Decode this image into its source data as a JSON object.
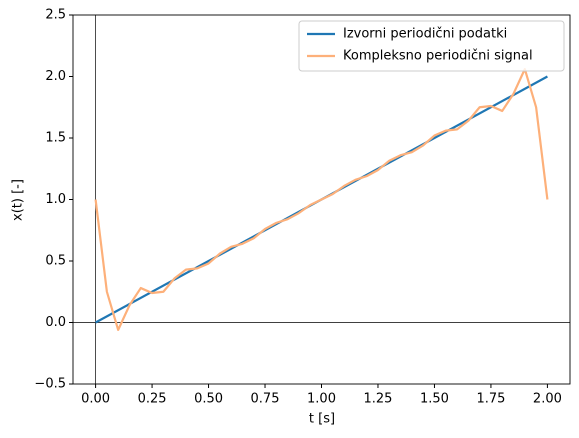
{
  "chart_data": {
    "type": "line",
    "xlabel": "t [s]",
    "ylabel": "x(t) [-]",
    "xlim": [
      -0.1,
      2.1
    ],
    "ylim": [
      -0.5,
      2.5
    ],
    "xticks": [
      {
        "value": 0,
        "label": "0.00"
      },
      {
        "value": 0.25,
        "label": "0.25"
      },
      {
        "value": 0.5,
        "label": "0.50"
      },
      {
        "value": 0.75,
        "label": "0.75"
      },
      {
        "value": 1,
        "label": "1.00"
      },
      {
        "value": 1.25,
        "label": "1.25"
      },
      {
        "value": 1.5,
        "label": "1.50"
      },
      {
        "value": 1.75,
        "label": "1.75"
      },
      {
        "value": 2,
        "label": "2.00"
      }
    ],
    "yticks": [
      {
        "value": -0.5,
        "label": "−0.5"
      },
      {
        "value": 0,
        "label": "0.0"
      },
      0.5,
      {
        "value": 1,
        "label": "1.0"
      },
      1.5,
      {
        "value": 2,
        "label": "2.0"
      },
      2.5
    ],
    "legend": "upper right",
    "series": [
      {
        "name": "Izvorni periodični podatki",
        "color": "#1f77b4",
        "x": [
          0,
          2
        ],
        "values": [
          0,
          2
        ]
      },
      {
        "name": "Kompleksno periodični signal",
        "color": "#fdb07a",
        "x": [
          0,
          0.05,
          0.1,
          0.15,
          0.2,
          0.25,
          0.3,
          0.35,
          0.4,
          0.45,
          0.5,
          0.55,
          0.6,
          0.65,
          0.7,
          0.75,
          0.8,
          0.85,
          0.9,
          0.95,
          1,
          1.05,
          1.1,
          1.15,
          1.2,
          1.25,
          1.3,
          1.35,
          1.4,
          1.45,
          1.5,
          1.55,
          1.6,
          1.65,
          1.7,
          1.75,
          1.8,
          1.85,
          1.9,
          1.95,
          2
        ],
        "values": [
          1,
          0.25,
          -0.06,
          0.14,
          0.28,
          0.24,
          0.25,
          0.36,
          0.43,
          0.44,
          0.48,
          0.56,
          0.615,
          0.64,
          0.685,
          0.76,
          0.81,
          0.84,
          0.89,
          0.955,
          1,
          1.045,
          1.11,
          1.16,
          1.19,
          1.24,
          1.315,
          1.36,
          1.385,
          1.44,
          1.52,
          1.56,
          1.57,
          1.64,
          1.75,
          1.76,
          1.72,
          1.86,
          2.06,
          1.75,
          1
        ]
      }
    ]
  }
}
